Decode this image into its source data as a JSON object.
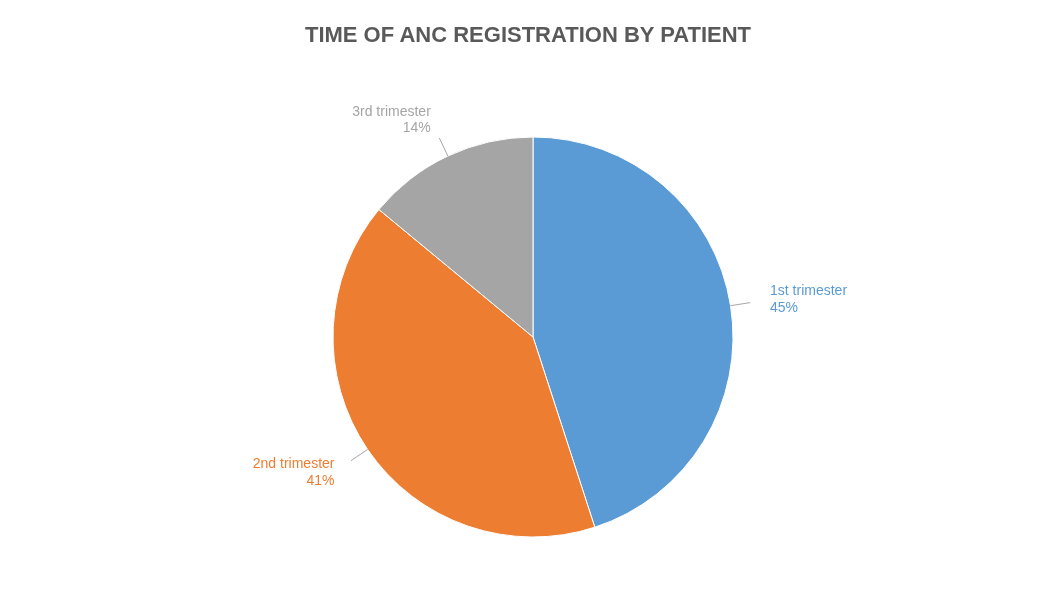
{
  "chart_data": {
    "type": "pie",
    "title": "TIME OF ANC REGISTRATION BY PATIENT",
    "categories": [
      "1st trimester",
      "2nd trimester",
      "3rd trimester"
    ],
    "values": [
      45,
      41,
      14
    ],
    "colors": [
      "#5b9bd5",
      "#ed7d31",
      "#a5a5a5"
    ],
    "value_labels": [
      "45%",
      "41%",
      "14%"
    ]
  }
}
